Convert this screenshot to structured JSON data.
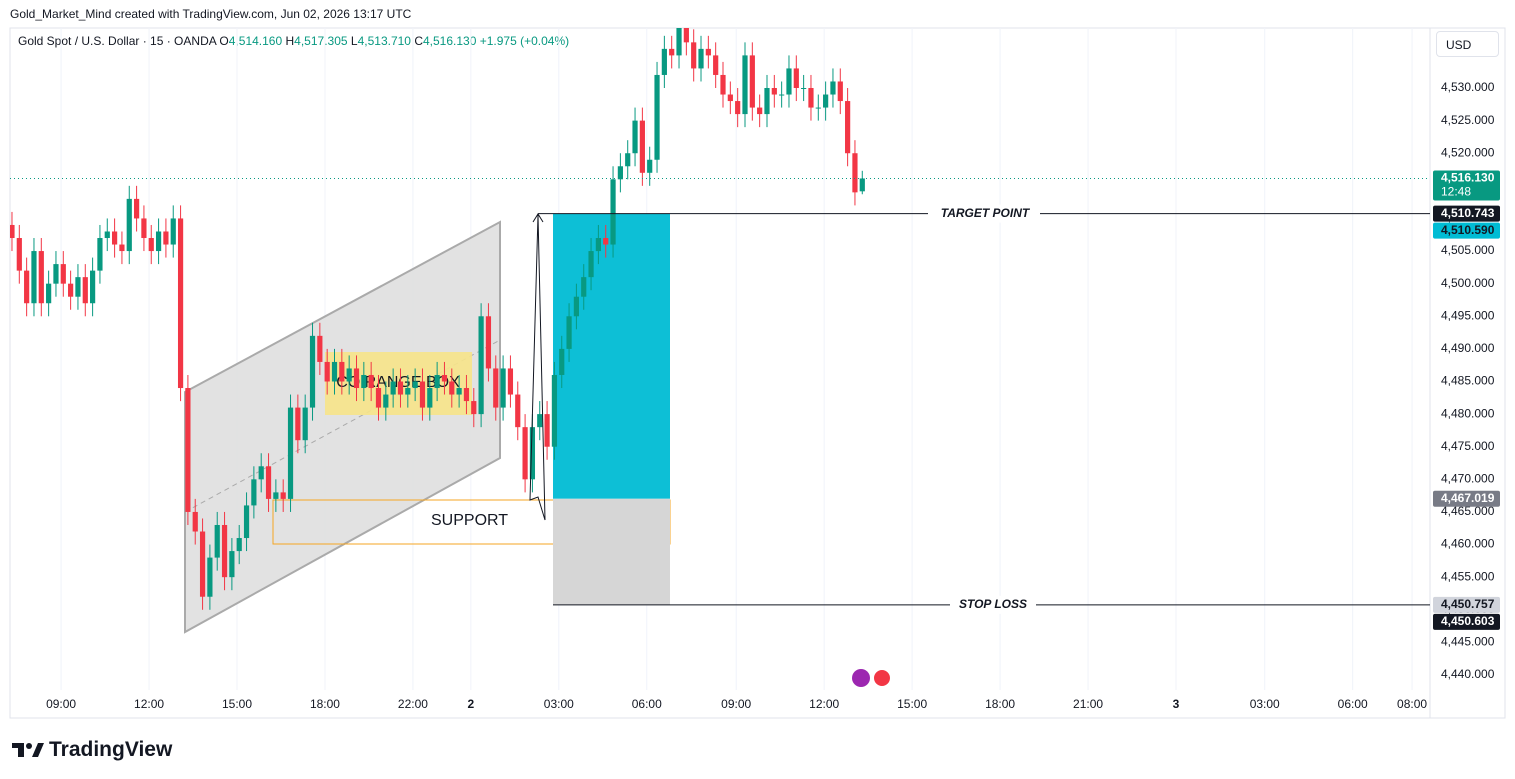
{
  "header": {
    "attribution": "Gold_Market_Mind created with TradingView.com, Jun 02, 2026 13:17 UTC",
    "currency": "USD",
    "brand": "TradingView"
  },
  "chart_data": {
    "type": "candlestick",
    "legend": {
      "symbol": "Gold Spot / U.S. Dollar · 15 · OANDA",
      "o_label": "O",
      "o": "4,514.160",
      "h_label": "H",
      "h": "4,517.305",
      "l_label": "L",
      "l": "4,513.710",
      "c_label": "C",
      "c": "4,516.130",
      "change": "+1.975 (+0.04%)"
    },
    "up_color": "#089981",
    "down_color": "#f23645",
    "grid": true,
    "open": [
      4509,
      4507,
      4502,
      4497,
      4505,
      4497,
      4500,
      4503,
      4500,
      4498,
      4501,
      4497,
      4502,
      4507,
      4508,
      4506,
      4505,
      4513,
      4510,
      4507,
      4505,
      4508,
      4506,
      4510,
      4484,
      4465,
      4462,
      4452,
      4458,
      4463,
      4455,
      4459,
      4461,
      4466,
      4470,
      4472,
      4467,
      4468,
      4467,
      4481,
      4476,
      4481,
      4492,
      4488,
      4485,
      4488,
      4485,
      4487,
      4484,
      4486,
      4484,
      4481,
      4483,
      4485,
      4483,
      4484,
      4485,
      4481,
      4484,
      4486,
      4485,
      4483,
      4484,
      4482,
      4480,
      4495,
      4487,
      4481,
      4487,
      4483,
      4478,
      4470,
      4478,
      4480,
      4475,
      4486,
      4490,
      4495,
      4498,
      4501,
      4505,
      4507,
      4506,
      4516,
      4518,
      4520,
      4525,
      4517,
      4519,
      4532,
      4536,
      4535,
      4540,
      4537,
      4533,
      4536,
      4535,
      4532,
      4529,
      4528,
      4526,
      4535,
      4527,
      4526,
      4530,
      4529,
      4529,
      4533,
      4530,
      4530,
      4527,
      4527,
      4529,
      4531,
      4528,
      4520,
      4514.16
    ],
    "high": [
      4511,
      4509,
      4504,
      4507,
      4507,
      4502,
      4505,
      4505,
      4502,
      4503,
      4503,
      4504,
      4509,
      4510,
      4510,
      4508,
      4515,
      4515,
      4512,
      4509,
      4510,
      4510,
      4512,
      4512,
      4486,
      4467,
      4464,
      4460,
      4465,
      4465,
      4461,
      4463,
      4468,
      4472,
      4474,
      4474,
      4470,
      4470,
      4483,
      4483,
      4483,
      4494,
      4494,
      4490,
      4490,
      4490,
      4489,
      4489,
      4488,
      4488,
      4486,
      4485,
      4487,
      4487,
      4486,
      4487,
      4487,
      4486,
      4488,
      4488,
      4487,
      4486,
      4486,
      4484,
      4497,
      4497,
      4489,
      4489,
      4489,
      4485,
      4480,
      4480,
      4482,
      4482,
      4488,
      4492,
      4497,
      4500,
      4503,
      4507,
      4509,
      4509,
      4518,
      4520,
      4522,
      4527,
      4527,
      4521,
      4534,
      4538,
      4538,
      4542,
      4542,
      4539,
      4538,
      4538,
      4537,
      4534,
      4531,
      4530,
      4537,
      4537,
      4529,
      4532,
      4532,
      4531,
      4535,
      4535,
      4532,
      4532,
      4529,
      4531,
      4533,
      4533,
      4530,
      4522,
      4517.305
    ],
    "low": [
      4505,
      4500,
      4495,
      4495,
      4495,
      4495,
      4498,
      4498,
      4496,
      4496,
      4495,
      4495,
      4500,
      4505,
      4504,
      4503,
      4503,
      4508,
      4505,
      4503,
      4503,
      4504,
      4504,
      4482,
      4463,
      4460,
      4450,
      4450,
      4456,
      4453,
      4453,
      4457,
      4459,
      4464,
      4468,
      4465,
      4465,
      4465,
      4465,
      4474,
      4474,
      4479,
      4486,
      4483,
      4483,
      4483,
      4483,
      4482,
      4482,
      4482,
      4479,
      4479,
      4481,
      4481,
      4481,
      4482,
      4479,
      4479,
      4482,
      4483,
      4481,
      4481,
      4480,
      4478,
      4478,
      4485,
      4479,
      4479,
      4481,
      4476,
      4468,
      4468,
      4476,
      4473,
      4473,
      4484,
      4488,
      4493,
      4496,
      4499,
      4503,
      4504,
      4504,
      4514,
      4516,
      4518,
      4515,
      4515,
      4517,
      4530,
      4533,
      4533,
      4535,
      4531,
      4531,
      4533,
      4530,
      4527,
      4526,
      4524,
      4524,
      4525,
      4524,
      4524,
      4527,
      4527,
      4527,
      4528,
      4528,
      4525,
      4525,
      4525,
      4527,
      4526,
      4518,
      4512,
      4513.71
    ],
    "close": [
      4507,
      4502,
      4497,
      4505,
      4497,
      4500,
      4503,
      4500,
      4498,
      4501,
      4497,
      4502,
      4507,
      4508,
      4506,
      4505,
      4513,
      4510,
      4507,
      4505,
      4508,
      4506,
      4510,
      4484,
      4465,
      4462,
      4452,
      4458,
      4463,
      4455,
      4459,
      4461,
      4466,
      4470,
      4472,
      4467,
      4468,
      4467,
      4481,
      4476,
      4481,
      4492,
      4488,
      4485,
      4488,
      4485,
      4487,
      4484,
      4486,
      4484,
      4481,
      4483,
      4485,
      4483,
      4484,
      4485,
      4481,
      4484,
      4486,
      4485,
      4483,
      4484,
      4482,
      4480,
      4495,
      4487,
      4481,
      4487,
      4483,
      4478,
      4470,
      4478,
      4480,
      4475,
      4486,
      4490,
      4495,
      4498,
      4501,
      4505,
      4507,
      4506,
      4516,
      4518,
      4520,
      4525,
      4517,
      4519,
      4532,
      4536,
      4535,
      4540,
      4537,
      4533,
      4536,
      4535,
      4532,
      4529,
      4528,
      4526,
      4535,
      4527,
      4526,
      4530,
      4529,
      4529,
      4533,
      4530,
      4530,
      4527,
      4527,
      4529,
      4531,
      4528,
      4520,
      4514,
      4516.13
    ],
    "xlim": [
      -0.27,
      193.45
    ],
    "xticks": [
      {
        "value": 6.7,
        "label": "09:00"
      },
      {
        "value": 18.7,
        "label": "12:00"
      },
      {
        "value": 30.7,
        "label": "15:00"
      },
      {
        "value": 42.7,
        "label": "18:00"
      },
      {
        "value": 54.7,
        "label": "22:00"
      },
      {
        "value": 62.6,
        "label": "2"
      },
      {
        "value": 74.6,
        "label": "03:00"
      },
      {
        "value": 86.6,
        "label": "06:00"
      },
      {
        "value": 98.8,
        "label": "09:00"
      },
      {
        "value": 110.8,
        "label": "12:00"
      },
      {
        "value": 122.8,
        "label": "15:00"
      },
      {
        "value": 134.8,
        "label": "18:00"
      },
      {
        "value": 146.8,
        "label": "21:00"
      },
      {
        "value": 158.8,
        "label": "3"
      },
      {
        "value": 170.9,
        "label": "03:00"
      },
      {
        "value": 182.9,
        "label": "06:00"
      },
      {
        "value": 191.0,
        "label": "08:00"
      }
    ],
    "ylim": [
      4437.7,
      4539.2
    ],
    "yticks": [
      {
        "value": 4440,
        "label": "4,440.000"
      },
      {
        "value": 4445,
        "label": "4,445.000"
      },
      {
        "value": 4450,
        "label": "4,450.000"
      },
      {
        "value": 4455,
        "label": "4,455.000"
      },
      {
        "value": 4460,
        "label": "4,460.000"
      },
      {
        "value": 4465,
        "label": "4,465.000"
      },
      {
        "value": 4470,
        "label": "4,470.000"
      },
      {
        "value": 4475,
        "label": "4,475.000"
      },
      {
        "value": 4480,
        "label": "4,480.000"
      },
      {
        "value": 4485,
        "label": "4,485.000"
      },
      {
        "value": 4490,
        "label": "4,490.000"
      },
      {
        "value": 4495,
        "label": "4,495.000"
      },
      {
        "value": 4500,
        "label": "4,500.000"
      },
      {
        "value": 4505,
        "label": "4,505.000"
      },
      {
        "value": 4510,
        "label": "4,510.000"
      },
      {
        "value": 4515,
        "label": "4,515.000"
      },
      {
        "value": 4520,
        "label": "4,520.000"
      },
      {
        "value": 4525,
        "label": "4,525.000"
      },
      {
        "value": 4530,
        "label": "4,530.000"
      }
    ],
    "price_labels": [
      {
        "value": 4516.13,
        "label": "4,516.130",
        "sub": "12:48",
        "color": "#089981",
        "text_color": "#ffffff"
      },
      {
        "value": 4510.743,
        "label": "4,510.743",
        "color": "#131722",
        "text_color": "#ffffff"
      },
      {
        "value": 4510.59,
        "label": "4,510.590",
        "color": "#00bcd4",
        "text_color": "#131722"
      },
      {
        "value": 4467.019,
        "label": "4,467.019",
        "color": "#787b86",
        "text_color": "#ffffff"
      },
      {
        "value": 4450.757,
        "label": "4,450.757",
        "color": "#d1d4dc",
        "text_color": "#131722"
      },
      {
        "value": 4450.603,
        "label": "4,450.603",
        "color": "#131722",
        "text_color": "#ffffff"
      }
    ],
    "annotations": {
      "target": "TARGET POINT",
      "stop": "STOP LOSS",
      "support": "SUPPORT",
      "range_box": "CO RANGE BOX"
    }
  }
}
